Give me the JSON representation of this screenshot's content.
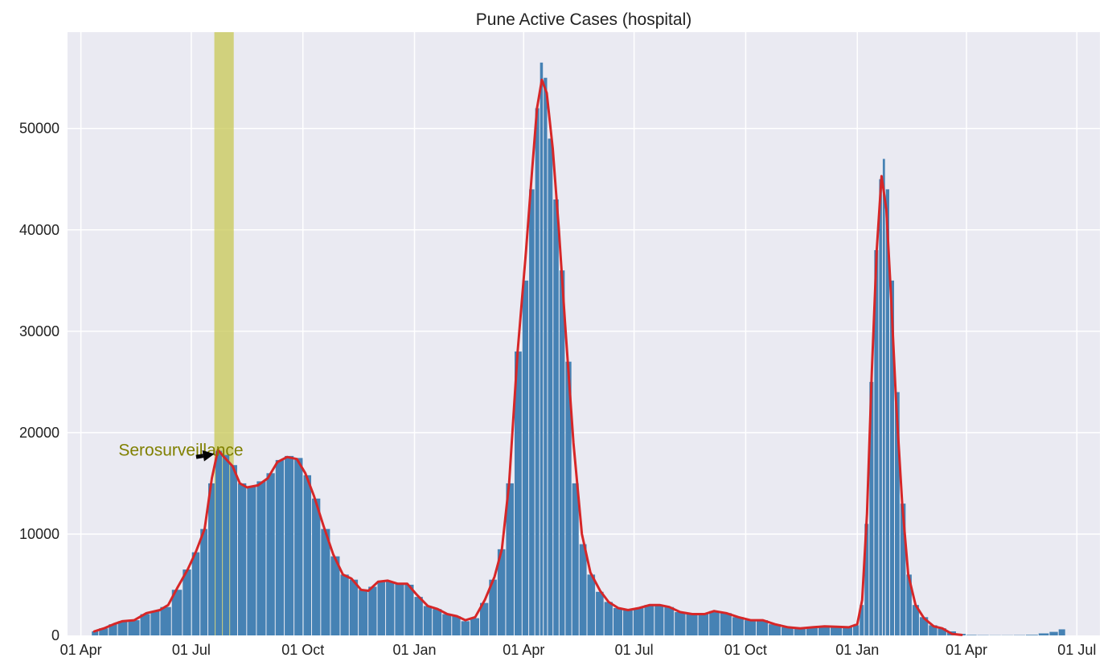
{
  "chart_data": {
    "type": "bar",
    "title": "Pune Active Cases (hospital)",
    "xlabel": "",
    "ylabel": "",
    "x_range": [
      "2020-03-21",
      "2022-07-20"
    ],
    "ylim": [
      0,
      59500
    ],
    "grid": true,
    "background_color": "#eaeaf2",
    "bar_color": "#4682b4",
    "smooth_color": "#d62728",
    "highlight_color": "#c8c855",
    "annotation_color": "#808000",
    "y_ticks": [
      {
        "value": 0,
        "label": "0"
      },
      {
        "value": 10000,
        "label": "10000"
      },
      {
        "value": 20000,
        "label": "20000"
      },
      {
        "value": 30000,
        "label": "30000"
      },
      {
        "value": 40000,
        "label": "40000"
      },
      {
        "value": 50000,
        "label": "50000"
      }
    ],
    "x_ticks": [
      {
        "date": "2020-04-01",
        "label": "01 Apr"
      },
      {
        "date": "2020-07-01",
        "label": "01 Jul"
      },
      {
        "date": "2020-10-01",
        "label": "01 Oct"
      },
      {
        "date": "2021-01-01",
        "label": "01 Jan"
      },
      {
        "date": "2021-04-01",
        "label": "01 Apr"
      },
      {
        "date": "2021-07-01",
        "label": "01 Jul"
      },
      {
        "date": "2021-10-01",
        "label": "01 Oct"
      },
      {
        "date": "2022-01-01",
        "label": "01 Jan"
      },
      {
        "date": "2022-04-01",
        "label": "01 Apr"
      },
      {
        "date": "2022-07-01",
        "label": "01 Jul"
      }
    ],
    "highlight_range": [
      "2020-07-20",
      "2020-08-05"
    ],
    "annotation": {
      "text": "Serosurveillance",
      "text_date": "2020-05-02",
      "text_value": 18300,
      "arrow_from_date": "2020-07-05",
      "arrow_from_value": 17600,
      "arrow_to_date": "2020-07-20",
      "arrow_to_value": 17900
    },
    "series": [
      {
        "type": "bar",
        "points": [
          [
            "2020-04-12",
            400
          ],
          [
            "2020-04-20",
            700
          ],
          [
            "2020-04-28",
            1100
          ],
          [
            "2020-05-05",
            1400
          ],
          [
            "2020-05-15",
            1500
          ],
          [
            "2020-05-25",
            2100
          ],
          [
            "2020-06-01",
            2400
          ],
          [
            "2020-06-10",
            2800
          ],
          [
            "2020-06-20",
            4500
          ],
          [
            "2020-06-28",
            6500
          ],
          [
            "2020-07-05",
            8200
          ],
          [
            "2020-07-12",
            10500
          ],
          [
            "2020-07-18",
            15000
          ],
          [
            "2020-07-24",
            18200
          ],
          [
            "2020-07-30",
            17800
          ],
          [
            "2020-08-05",
            16800
          ],
          [
            "2020-08-12",
            15000
          ],
          [
            "2020-08-20",
            14700
          ],
          [
            "2020-08-28",
            15200
          ],
          [
            "2020-09-05",
            16000
          ],
          [
            "2020-09-12",
            17300
          ],
          [
            "2020-09-20",
            17700
          ],
          [
            "2020-09-28",
            17500
          ],
          [
            "2020-10-05",
            15800
          ],
          [
            "2020-10-12",
            13500
          ],
          [
            "2020-10-20",
            10500
          ],
          [
            "2020-10-28",
            7800
          ],
          [
            "2020-11-05",
            6000
          ],
          [
            "2020-11-12",
            5500
          ],
          [
            "2020-11-20",
            4500
          ],
          [
            "2020-11-28",
            4800
          ],
          [
            "2020-12-05",
            5400
          ],
          [
            "2020-12-12",
            5300
          ],
          [
            "2020-12-20",
            5100
          ],
          [
            "2020-12-28",
            5000
          ],
          [
            "2021-01-05",
            3800
          ],
          [
            "2021-01-12",
            2900
          ],
          [
            "2021-01-20",
            2600
          ],
          [
            "2021-01-28",
            2100
          ],
          [
            "2021-02-05",
            1900
          ],
          [
            "2021-02-12",
            1400
          ],
          [
            "2021-02-20",
            1700
          ],
          [
            "2021-02-28",
            3200
          ],
          [
            "2021-03-07",
            5500
          ],
          [
            "2021-03-14",
            8500
          ],
          [
            "2021-03-21",
            15000
          ],
          [
            "2021-03-28",
            28000
          ],
          [
            "2021-04-03",
            35000
          ],
          [
            "2021-04-08",
            44000
          ],
          [
            "2021-04-13",
            52000
          ],
          [
            "2021-04-16",
            56500
          ],
          [
            "2021-04-19",
            55000
          ],
          [
            "2021-04-23",
            49000
          ],
          [
            "2021-04-28",
            43000
          ],
          [
            "2021-05-03",
            36000
          ],
          [
            "2021-05-08",
            27000
          ],
          [
            "2021-05-14",
            15000
          ],
          [
            "2021-05-20",
            9000
          ],
          [
            "2021-05-27",
            6000
          ],
          [
            "2021-06-03",
            4300
          ],
          [
            "2021-06-10",
            3300
          ],
          [
            "2021-06-18",
            2700
          ],
          [
            "2021-06-26",
            2500
          ],
          [
            "2021-07-05",
            2700
          ],
          [
            "2021-07-14",
            3000
          ],
          [
            "2021-07-22",
            3000
          ],
          [
            "2021-07-30",
            2800
          ],
          [
            "2021-08-08",
            2300
          ],
          [
            "2021-08-18",
            2100
          ],
          [
            "2021-08-28",
            2100
          ],
          [
            "2021-09-05",
            2400
          ],
          [
            "2021-09-15",
            2200
          ],
          [
            "2021-09-25",
            1800
          ],
          [
            "2021-10-05",
            1500
          ],
          [
            "2021-10-15",
            1500
          ],
          [
            "2021-10-25",
            1100
          ],
          [
            "2021-11-05",
            800
          ],
          [
            "2021-11-15",
            700
          ],
          [
            "2021-11-25",
            800
          ],
          [
            "2021-12-05",
            900
          ],
          [
            "2021-12-15",
            850
          ],
          [
            "2021-12-25",
            800
          ],
          [
            "2022-01-01",
            1000
          ],
          [
            "2022-01-05",
            3000
          ],
          [
            "2022-01-09",
            11000
          ],
          [
            "2022-01-13",
            25000
          ],
          [
            "2022-01-17",
            38000
          ],
          [
            "2022-01-21",
            45000
          ],
          [
            "2022-01-23",
            47000
          ],
          [
            "2022-01-26",
            44000
          ],
          [
            "2022-01-30",
            35000
          ],
          [
            "2022-02-03",
            24000
          ],
          [
            "2022-02-08",
            13000
          ],
          [
            "2022-02-13",
            6000
          ],
          [
            "2022-02-18",
            3000
          ],
          [
            "2022-02-25",
            1800
          ],
          [
            "2022-03-05",
            1000
          ],
          [
            "2022-03-12",
            700
          ],
          [
            "2022-03-20",
            400
          ],
          [
            "2022-03-28",
            150
          ],
          [
            "2022-04-05",
            50
          ],
          [
            "2022-04-15",
            30
          ],
          [
            "2022-04-25",
            20
          ],
          [
            "2022-05-05",
            20
          ],
          [
            "2022-05-15",
            30
          ],
          [
            "2022-05-25",
            60
          ],
          [
            "2022-06-05",
            200
          ],
          [
            "2022-06-12",
            350
          ],
          [
            "2022-06-20",
            600
          ]
        ]
      },
      {
        "type": "line",
        "points": [
          [
            "2020-04-12",
            400
          ],
          [
            "2020-04-20",
            700
          ],
          [
            "2020-04-28",
            1100
          ],
          [
            "2020-05-05",
            1400
          ],
          [
            "2020-05-15",
            1500
          ],
          [
            "2020-05-25",
            2200
          ],
          [
            "2020-06-05",
            2500
          ],
          [
            "2020-06-12",
            3000
          ],
          [
            "2020-06-20",
            4800
          ],
          [
            "2020-06-28",
            6500
          ],
          [
            "2020-07-05",
            8300
          ],
          [
            "2020-07-12",
            10500
          ],
          [
            "2020-07-18",
            15500
          ],
          [
            "2020-07-23",
            18300
          ],
          [
            "2020-07-28",
            17600
          ],
          [
            "2020-08-04",
            16700
          ],
          [
            "2020-08-10",
            15000
          ],
          [
            "2020-08-16",
            14600
          ],
          [
            "2020-08-25",
            14800
          ],
          [
            "2020-09-02",
            15500
          ],
          [
            "2020-09-10",
            17100
          ],
          [
            "2020-09-18",
            17600
          ],
          [
            "2020-09-26",
            17400
          ],
          [
            "2020-10-03",
            16000
          ],
          [
            "2020-10-10",
            13800
          ],
          [
            "2020-10-18",
            10800
          ],
          [
            "2020-10-26",
            8000
          ],
          [
            "2020-11-03",
            6000
          ],
          [
            "2020-11-10",
            5600
          ],
          [
            "2020-11-18",
            4500
          ],
          [
            "2020-11-24",
            4400
          ],
          [
            "2020-12-02",
            5300
          ],
          [
            "2020-12-10",
            5400
          ],
          [
            "2020-12-18",
            5100
          ],
          [
            "2020-12-26",
            5100
          ],
          [
            "2021-01-03",
            4000
          ],
          [
            "2021-01-12",
            2900
          ],
          [
            "2021-01-20",
            2600
          ],
          [
            "2021-01-28",
            2100
          ],
          [
            "2021-02-05",
            1900
          ],
          [
            "2021-02-12",
            1500
          ],
          [
            "2021-02-20",
            1800
          ],
          [
            "2021-02-28",
            3500
          ],
          [
            "2021-03-08",
            5800
          ],
          [
            "2021-03-14",
            8500
          ],
          [
            "2021-03-20",
            15000
          ],
          [
            "2021-03-27",
            28000
          ],
          [
            "2021-04-03",
            38000
          ],
          [
            "2021-04-08",
            46000
          ],
          [
            "2021-04-12",
            52000
          ],
          [
            "2021-04-16",
            54800
          ],
          [
            "2021-04-20",
            53500
          ],
          [
            "2021-04-25",
            48000
          ],
          [
            "2021-04-30",
            40000
          ],
          [
            "2021-05-05",
            31000
          ],
          [
            "2021-05-12",
            19000
          ],
          [
            "2021-05-19",
            10000
          ],
          [
            "2021-05-26",
            6200
          ],
          [
            "2021-06-03",
            4400
          ],
          [
            "2021-06-10",
            3300
          ],
          [
            "2021-06-18",
            2700
          ],
          [
            "2021-06-26",
            2500
          ],
          [
            "2021-07-05",
            2700
          ],
          [
            "2021-07-14",
            3000
          ],
          [
            "2021-07-22",
            3000
          ],
          [
            "2021-07-30",
            2800
          ],
          [
            "2021-08-08",
            2300
          ],
          [
            "2021-08-18",
            2100
          ],
          [
            "2021-08-28",
            2100
          ],
          [
            "2021-09-05",
            2400
          ],
          [
            "2021-09-15",
            2200
          ],
          [
            "2021-09-25",
            1800
          ],
          [
            "2021-10-05",
            1500
          ],
          [
            "2021-10-15",
            1500
          ],
          [
            "2021-10-25",
            1100
          ],
          [
            "2021-11-05",
            800
          ],
          [
            "2021-11-15",
            700
          ],
          [
            "2021-11-25",
            800
          ],
          [
            "2021-12-05",
            900
          ],
          [
            "2021-12-15",
            850
          ],
          [
            "2021-12-25",
            800
          ],
          [
            "2022-01-01",
            1100
          ],
          [
            "2022-01-05",
            3500
          ],
          [
            "2022-01-09",
            12000
          ],
          [
            "2022-01-13",
            26000
          ],
          [
            "2022-01-17",
            38000
          ],
          [
            "2022-01-21",
            45300
          ],
          [
            "2022-01-25",
            42000
          ],
          [
            "2022-01-29",
            33000
          ],
          [
            "2022-02-02",
            23000
          ],
          [
            "2022-02-07",
            13000
          ],
          [
            "2022-02-12",
            6000
          ],
          [
            "2022-02-18",
            3000
          ],
          [
            "2022-02-25",
            1700
          ],
          [
            "2022-03-05",
            900
          ],
          [
            "2022-03-12",
            700
          ],
          [
            "2022-03-20",
            150
          ],
          [
            "2022-03-28",
            50
          ]
        ]
      }
    ]
  }
}
